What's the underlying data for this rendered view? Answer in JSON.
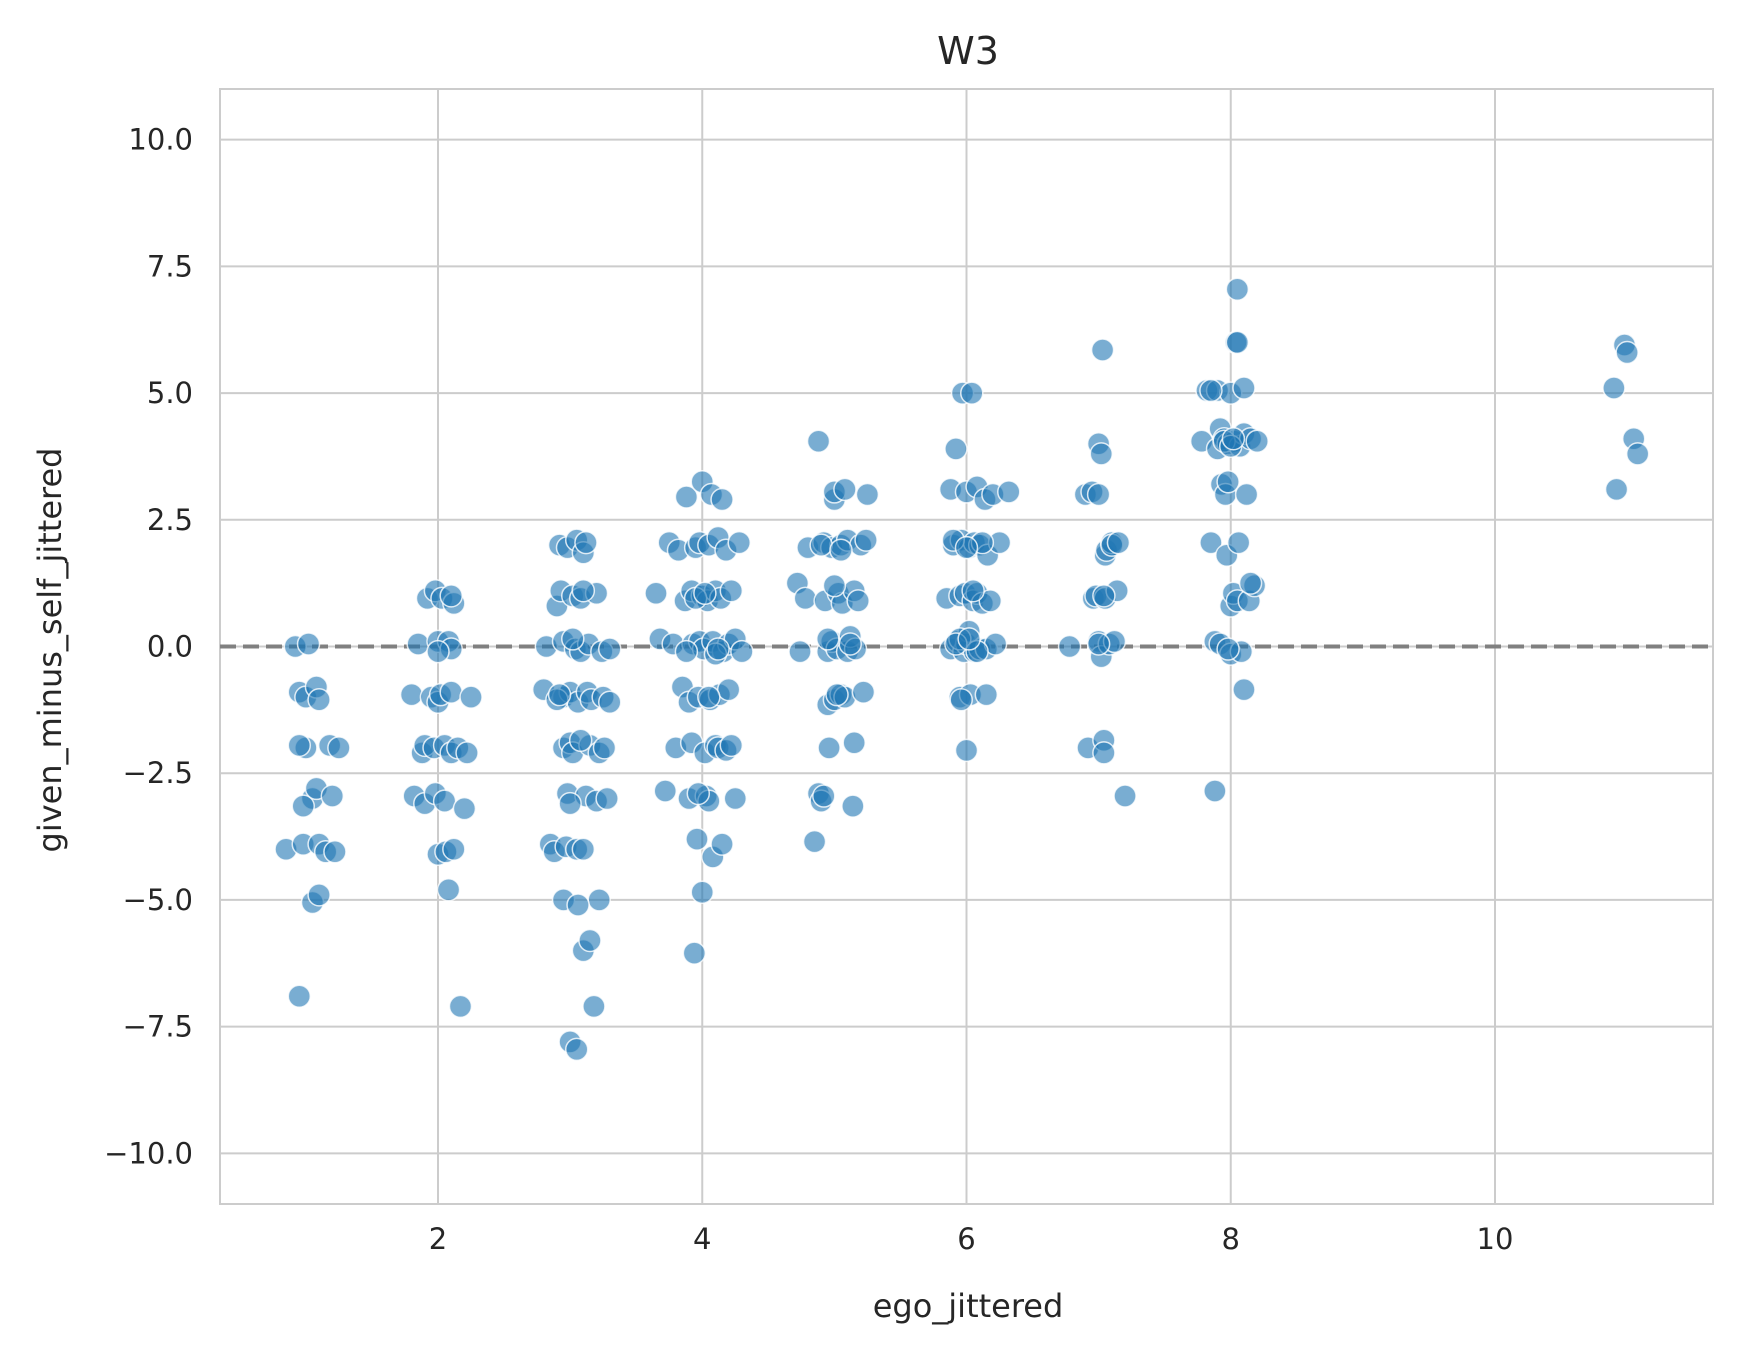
{
  "chart_data": {
    "type": "scatter",
    "title": "W3",
    "xlabel": "ego_jittered",
    "ylabel": "given_minus_self_jittered",
    "xlim": [
      0.35,
      11.65
    ],
    "ylim": [
      -11,
      11
    ],
    "xticks": [
      2,
      4,
      6,
      8,
      10
    ],
    "xtick_labels": [
      "2",
      "4",
      "6",
      "8",
      "10"
    ],
    "yticks": [
      -10,
      -7.5,
      -5,
      -2.5,
      0,
      2.5,
      5,
      7.5,
      10
    ],
    "ytick_labels": [
      "−10.0",
      "−7.5",
      "−5.0",
      "−2.5",
      "0.0",
      "2.5",
      "5.0",
      "7.5",
      "10.0"
    ],
    "grid": true,
    "reference_line": {
      "y": 0,
      "style": "dashed",
      "color": "#808080"
    },
    "point_color": "#1f77b4",
    "point_edge_color": "#ffffff",
    "point_opacity": 0.6,
    "points": [
      [
        0.85,
        -4.0
      ],
      [
        0.92,
        0.0
      ],
      [
        0.95,
        -0.9
      ],
      [
        0.98,
        -3.9
      ],
      [
        0.95,
        -6.9
      ],
      [
        1.0,
        -1.0
      ],
      [
        1.02,
        0.05
      ],
      [
        1.05,
        -3.0
      ],
      [
        0.98,
        -3.15
      ],
      [
        1.0,
        -2.0
      ],
      [
        0.95,
        -1.95
      ],
      [
        1.08,
        -0.8
      ],
      [
        1.1,
        -1.05
      ],
      [
        1.08,
        -2.8
      ],
      [
        1.1,
        -3.9
      ],
      [
        1.05,
        -5.05
      ],
      [
        1.1,
        -4.9
      ],
      [
        1.15,
        -4.05
      ],
      [
        1.18,
        -1.95
      ],
      [
        1.2,
        -2.95
      ],
      [
        1.22,
        -4.05
      ],
      [
        1.25,
        -2.0
      ],
      [
        1.8,
        -0.95
      ],
      [
        1.82,
        -2.95
      ],
      [
        1.85,
        0.05
      ],
      [
        1.88,
        -2.1
      ],
      [
        1.9,
        -1.95
      ],
      [
        1.92,
        0.95
      ],
      [
        1.9,
        -3.1
      ],
      [
        1.95,
        -1.0
      ],
      [
        1.97,
        -2.0
      ],
      [
        1.98,
        1.1
      ],
      [
        2.0,
        0.1
      ],
      [
        2.0,
        -1.1
      ],
      [
        1.98,
        -2.9
      ],
      [
        2.0,
        -4.1
      ],
      [
        2.02,
        -0.95
      ],
      [
        2.03,
        0.95
      ],
      [
        2.05,
        -1.95
      ],
      [
        2.05,
        -3.05
      ],
      [
        2.06,
        -4.05
      ],
      [
        2.08,
        -4.8
      ],
      [
        2.08,
        0.1
      ],
      [
        2.1,
        -0.05
      ],
      [
        2.1,
        -2.1
      ],
      [
        2.1,
        -0.9
      ],
      [
        2.12,
        0.85
      ],
      [
        2.15,
        -2.0
      ],
      [
        2.17,
        -7.1
      ],
      [
        2.2,
        -3.2
      ],
      [
        2.22,
        -2.1
      ],
      [
        2.25,
        -1.0
      ],
      [
        2.1,
        1.0
      ],
      [
        2.12,
        -4.0
      ],
      [
        2.0,
        -0.1
      ],
      [
        2.8,
        -0.85
      ],
      [
        2.82,
        0.0
      ],
      [
        2.85,
        -3.9
      ],
      [
        2.88,
        -4.05
      ],
      [
        2.9,
        0.8
      ],
      [
        2.92,
        2.0
      ],
      [
        2.93,
        1.1
      ],
      [
        2.95,
        -1.0
      ],
      [
        2.95,
        -2.0
      ],
      [
        2.95,
        0.1
      ],
      [
        2.97,
        -3.95
      ],
      [
        2.98,
        -2.9
      ],
      [
        3.0,
        -7.8
      ],
      [
        2.98,
        1.95
      ],
      [
        3.0,
        -0.9
      ],
      [
        3.0,
        -1.9
      ],
      [
        3.02,
        1.0
      ],
      [
        3.02,
        -2.1
      ],
      [
        3.04,
        -0.05
      ],
      [
        3.05,
        -4.0
      ],
      [
        3.05,
        -7.95
      ],
      [
        3.05,
        2.1
      ],
      [
        3.06,
        -1.1
      ],
      [
        3.08,
        0.95
      ],
      [
        3.08,
        -0.1
      ],
      [
        3.1,
        -4.0
      ],
      [
        3.1,
        -6.0
      ],
      [
        3.1,
        1.85
      ],
      [
        3.12,
        -2.95
      ],
      [
        3.12,
        2.05
      ],
      [
        3.13,
        -0.9
      ],
      [
        3.14,
        0.05
      ],
      [
        3.15,
        -5.8
      ],
      [
        3.15,
        -1.95
      ],
      [
        3.16,
        -1.05
      ],
      [
        3.18,
        -7.1
      ],
      [
        3.2,
        1.05
      ],
      [
        3.2,
        -3.05
      ],
      [
        3.22,
        -5.0
      ],
      [
        3.22,
        -2.1
      ],
      [
        3.24,
        -0.1
      ],
      [
        3.25,
        -1.0
      ],
      [
        3.26,
        -2.0
      ],
      [
        3.28,
        -3.0
      ],
      [
        3.3,
        -1.1
      ],
      [
        3.3,
        -0.05
      ],
      [
        2.95,
        -5.0
      ],
      [
        3.0,
        -3.1
      ],
      [
        2.9,
        -1.05
      ],
      [
        3.08,
        -1.85
      ],
      [
        2.92,
        -0.95
      ],
      [
        3.06,
        -5.1
      ],
      [
        3.02,
        0.15
      ],
      [
        3.1,
        1.1
      ],
      [
        3.65,
        1.05
      ],
      [
        3.68,
        0.15
      ],
      [
        3.72,
        -2.85
      ],
      [
        3.75,
        2.05
      ],
      [
        3.78,
        0.05
      ],
      [
        3.8,
        -2.0
      ],
      [
        3.82,
        1.9
      ],
      [
        3.85,
        -0.8
      ],
      [
        3.87,
        0.9
      ],
      [
        3.88,
        2.95
      ],
      [
        3.9,
        -1.1
      ],
      [
        3.9,
        -3.0
      ],
      [
        3.92,
        1.1
      ],
      [
        3.92,
        -1.9
      ],
      [
        3.93,
        0.05
      ],
      [
        3.94,
        -6.05
      ],
      [
        3.95,
        1.95
      ],
      [
        3.96,
        -3.8
      ],
      [
        3.97,
        -1.0
      ],
      [
        3.98,
        2.05
      ],
      [
        3.98,
        0.1
      ],
      [
        4.0,
        -4.85
      ],
      [
        4.0,
        3.25
      ],
      [
        4.0,
        1.0
      ],
      [
        4.01,
        -0.05
      ],
      [
        4.02,
        -2.1
      ],
      [
        4.03,
        -2.95
      ],
      [
        4.04,
        0.9
      ],
      [
        4.05,
        2.0
      ],
      [
        4.05,
        -3.05
      ],
      [
        4.06,
        -1.05
      ],
      [
        4.07,
        3.0
      ],
      [
        4.08,
        0.1
      ],
      [
        4.08,
        -4.15
      ],
      [
        4.1,
        1.1
      ],
      [
        4.1,
        -1.95
      ],
      [
        4.12,
        -2.0
      ],
      [
        4.12,
        2.15
      ],
      [
        4.13,
        -0.95
      ],
      [
        4.14,
        0.95
      ],
      [
        4.15,
        -3.9
      ],
      [
        4.15,
        2.9
      ],
      [
        4.16,
        -0.1
      ],
      [
        4.18,
        1.9
      ],
      [
        4.18,
        -2.05
      ],
      [
        4.2,
        0.05
      ],
      [
        4.2,
        -0.85
      ],
      [
        4.22,
        1.1
      ],
      [
        4.22,
        -1.95
      ],
      [
        4.25,
        -3.0
      ],
      [
        4.25,
        0.15
      ],
      [
        4.28,
        2.05
      ],
      [
        4.3,
        -0.1
      ],
      [
        4.05,
        -1.0
      ],
      [
        3.95,
        0.95
      ],
      [
        3.97,
        -2.9
      ],
      [
        4.1,
        -0.15
      ],
      [
        4.02,
        1.05
      ],
      [
        3.88,
        -0.1
      ],
      [
        4.12,
        -0.05
      ],
      [
        4.72,
        1.25
      ],
      [
        4.74,
        -0.1
      ],
      [
        4.78,
        0.95
      ],
      [
        4.8,
        1.95
      ],
      [
        4.85,
        -3.85
      ],
      [
        4.88,
        4.05
      ],
      [
        4.88,
        -2.9
      ],
      [
        4.9,
        -3.05
      ],
      [
        4.92,
        2.05
      ],
      [
        4.93,
        0.9
      ],
      [
        4.95,
        -0.1
      ],
      [
        4.95,
        -1.15
      ],
      [
        4.96,
        -2.0
      ],
      [
        4.98,
        1.95
      ],
      [
        4.98,
        0.1
      ],
      [
        5.0,
        2.9
      ],
      [
        5.0,
        3.05
      ],
      [
        5.0,
        -1.05
      ],
      [
        5.02,
        -0.05
      ],
      [
        5.03,
        1.05
      ],
      [
        5.05,
        2.0
      ],
      [
        5.05,
        -0.95
      ],
      [
        5.06,
        0.85
      ],
      [
        5.08,
        3.1
      ],
      [
        5.08,
        -1.0
      ],
      [
        5.1,
        2.1
      ],
      [
        5.1,
        -0.1
      ],
      [
        5.12,
        0.2
      ],
      [
        5.14,
        -3.15
      ],
      [
        5.15,
        -1.9
      ],
      [
        5.15,
        1.1
      ],
      [
        5.16,
        -0.05
      ],
      [
        5.18,
        0.9
      ],
      [
        5.2,
        2.0
      ],
      [
        5.22,
        -0.9
      ],
      [
        5.24,
        2.1
      ],
      [
        5.25,
        3.0
      ],
      [
        5.0,
        1.2
      ],
      [
        4.95,
        0.15
      ],
      [
        5.02,
        -0.95
      ],
      [
        4.9,
        2.0
      ],
      [
        5.05,
        1.9
      ],
      [
        5.12,
        0.05
      ],
      [
        4.92,
        -2.95
      ],
      [
        5.85,
        0.95
      ],
      [
        5.88,
        -0.05
      ],
      [
        5.88,
        3.1
      ],
      [
        5.9,
        2.0
      ],
      [
        5.92,
        3.9
      ],
      [
        5.93,
        0.1
      ],
      [
        5.95,
        -1.0
      ],
      [
        5.95,
        1.0
      ],
      [
        5.96,
        2.1
      ],
      [
        5.97,
        5.0
      ],
      [
        5.98,
        -0.1
      ],
      [
        5.99,
        1.05
      ],
      [
        6.0,
        -2.05
      ],
      [
        6.0,
        0.05
      ],
      [
        6.0,
        3.05
      ],
      [
        6.02,
        1.95
      ],
      [
        6.03,
        -0.95
      ],
      [
        6.04,
        5.0
      ],
      [
        6.05,
        0.9
      ],
      [
        6.06,
        2.05
      ],
      [
        6.06,
        -0.1
      ],
      [
        6.08,
        1.05
      ],
      [
        6.08,
        3.15
      ],
      [
        6.1,
        -0.05
      ],
      [
        6.1,
        2.0
      ],
      [
        6.12,
        0.85
      ],
      [
        6.14,
        2.9
      ],
      [
        6.15,
        -0.05
      ],
      [
        6.16,
        1.8
      ],
      [
        6.18,
        0.9
      ],
      [
        6.2,
        3.0
      ],
      [
        6.22,
        0.05
      ],
      [
        6.25,
        2.05
      ],
      [
        6.32,
        3.05
      ],
      [
        5.96,
        -1.05
      ],
      [
        6.02,
        0.3
      ],
      [
        5.9,
        2.1
      ],
      [
        6.05,
        1.1
      ],
      [
        6.12,
        2.05
      ],
      [
        5.95,
        0.15
      ],
      [
        6.08,
        -0.1
      ],
      [
        6.0,
        1.95
      ],
      [
        6.15,
        -0.95
      ],
      [
        5.92,
        0.05
      ],
      [
        6.02,
        0.15
      ],
      [
        6.78,
        0.0
      ],
      [
        6.9,
        3.0
      ],
      [
        6.92,
        -2.0
      ],
      [
        6.95,
        3.05
      ],
      [
        6.96,
        0.95
      ],
      [
        6.98,
        1.0
      ],
      [
        7.0,
        3.0
      ],
      [
        7.0,
        4.0
      ],
      [
        7.0,
        0.1
      ],
      [
        7.02,
        -0.2
      ],
      [
        7.02,
        3.8
      ],
      [
        7.03,
        5.85
      ],
      [
        7.04,
        -1.85
      ],
      [
        7.04,
        -2.1
      ],
      [
        7.05,
        1.8
      ],
      [
        7.05,
        0.95
      ],
      [
        7.06,
        1.9
      ],
      [
        7.08,
        0.05
      ],
      [
        7.1,
        2.05
      ],
      [
        7.1,
        2.0
      ],
      [
        7.12,
        0.1
      ],
      [
        7.14,
        1.1
      ],
      [
        7.15,
        2.05
      ],
      [
        7.2,
        -2.95
      ],
      [
        7.0,
        0.05
      ],
      [
        7.04,
        1.0
      ],
      [
        7.78,
        4.05
      ],
      [
        7.82,
        5.05
      ],
      [
        7.85,
        2.05
      ],
      [
        7.88,
        0.1
      ],
      [
        7.88,
        -2.85
      ],
      [
        7.9,
        5.05
      ],
      [
        7.9,
        3.9
      ],
      [
        7.92,
        4.3
      ],
      [
        7.92,
        0.05
      ],
      [
        7.93,
        3.2
      ],
      [
        7.95,
        4.1
      ],
      [
        7.96,
        3.0
      ],
      [
        7.97,
        1.8
      ],
      [
        7.98,
        3.25
      ],
      [
        7.98,
        4.0
      ],
      [
        8.0,
        5.0
      ],
      [
        8.0,
        0.8
      ],
      [
        8.0,
        -0.15
      ],
      [
        8.02,
        1.05
      ],
      [
        8.03,
        4.05
      ],
      [
        8.04,
        6.0
      ],
      [
        8.05,
        7.05
      ],
      [
        8.05,
        0.9
      ],
      [
        8.06,
        2.05
      ],
      [
        8.07,
        3.95
      ],
      [
        8.08,
        -0.1
      ],
      [
        8.1,
        4.2
      ],
      [
        8.1,
        -0.85
      ],
      [
        8.1,
        5.1
      ],
      [
        8.12,
        3.0
      ],
      [
        8.14,
        0.9
      ],
      [
        8.15,
        4.1
      ],
      [
        8.18,
        1.2
      ],
      [
        8.2,
        4.05
      ],
      [
        8.05,
        6.0
      ],
      [
        7.95,
        4.05
      ],
      [
        8.0,
        3.95
      ],
      [
        8.02,
        4.1
      ],
      [
        7.98,
        -0.05
      ],
      [
        8.15,
        1.25
      ],
      [
        7.85,
        5.05
      ],
      [
        10.9,
        5.1
      ],
      [
        10.92,
        3.1
      ],
      [
        10.98,
        5.95
      ],
      [
        11.0,
        5.8
      ],
      [
        11.05,
        4.1
      ],
      [
        11.08,
        3.8
      ]
    ]
  }
}
